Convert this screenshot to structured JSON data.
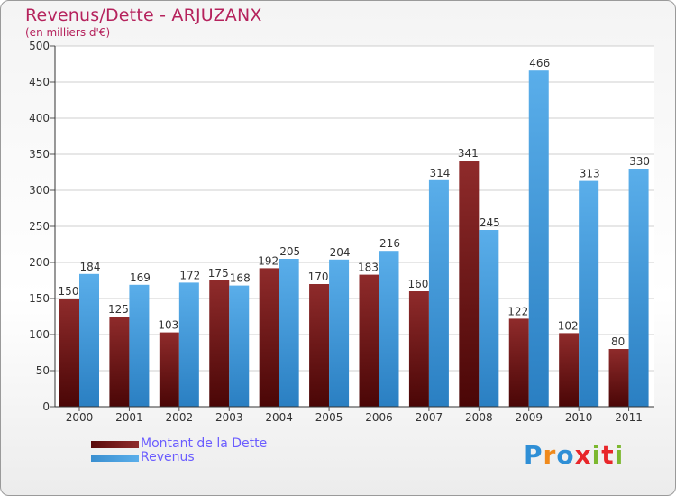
{
  "title": "Revenus/Dette - ARJUZANX",
  "subtitle": "(en milliers d'€)",
  "legend": {
    "dette": "Montant de la Dette",
    "revenus": "Revenus"
  },
  "logo": "Proxiti",
  "colors": {
    "dette": "#7a1a1a",
    "revenus": "#4ea3e3",
    "title": "#b5225c",
    "legend_text": "#6a5cff"
  },
  "chart_data": {
    "type": "bar",
    "title": "Revenus/Dette - ARJUZANX",
    "ylabel": "(en milliers d'€)",
    "xlabel": "",
    "ylim": [
      0,
      500
    ],
    "yticks": [
      0,
      50,
      100,
      150,
      200,
      250,
      300,
      350,
      400,
      450,
      500
    ],
    "categories": [
      "2000",
      "2001",
      "2002",
      "2003",
      "2004",
      "2005",
      "2006",
      "2007",
      "2008",
      "2009",
      "2010",
      "2011"
    ],
    "series": [
      {
        "name": "Montant de la Dette",
        "values": [
          150,
          125,
          103,
          175,
          192,
          170,
          183,
          160,
          341,
          122,
          102,
          80
        ]
      },
      {
        "name": "Revenus",
        "values": [
          184,
          169,
          172,
          168,
          205,
          204,
          216,
          314,
          245,
          466,
          313,
          330
        ]
      }
    ],
    "grid": true,
    "legend_position": "bottom-left"
  }
}
